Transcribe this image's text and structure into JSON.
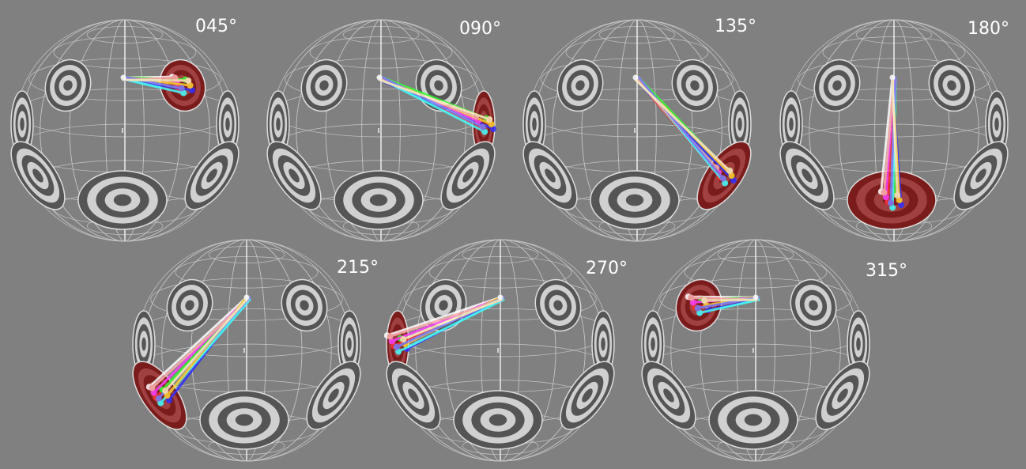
{
  "panels": [
    {
      "label": "045°",
      "highlighted_target": "upper-right"
    },
    {
      "label": "090°",
      "highlighted_target": "right"
    },
    {
      "label": "135°",
      "highlighted_target": "lower-right"
    },
    {
      "label": "180°",
      "highlighted_target": "bottom"
    },
    {
      "label": "215°",
      "highlighted_target": "lower-left"
    },
    {
      "label": "270°",
      "highlighted_target": "left"
    },
    {
      "label": "315°",
      "highlighted_target": "upper-left"
    }
  ],
  "colors": {
    "background": "#808080",
    "highlight_target": "#7a1c1c",
    "target_dark": "#555555",
    "target_light": "#d0d0d0",
    "grid": "#ffffff"
  },
  "trajectory_colors": [
    "#ffffff",
    "#ff3030",
    "#30ff30",
    "#3030ff",
    "#ff40ff",
    "#40ffff",
    "#ffd030",
    "#ffb0b0",
    "#8080ff",
    "#fff0c0"
  ]
}
